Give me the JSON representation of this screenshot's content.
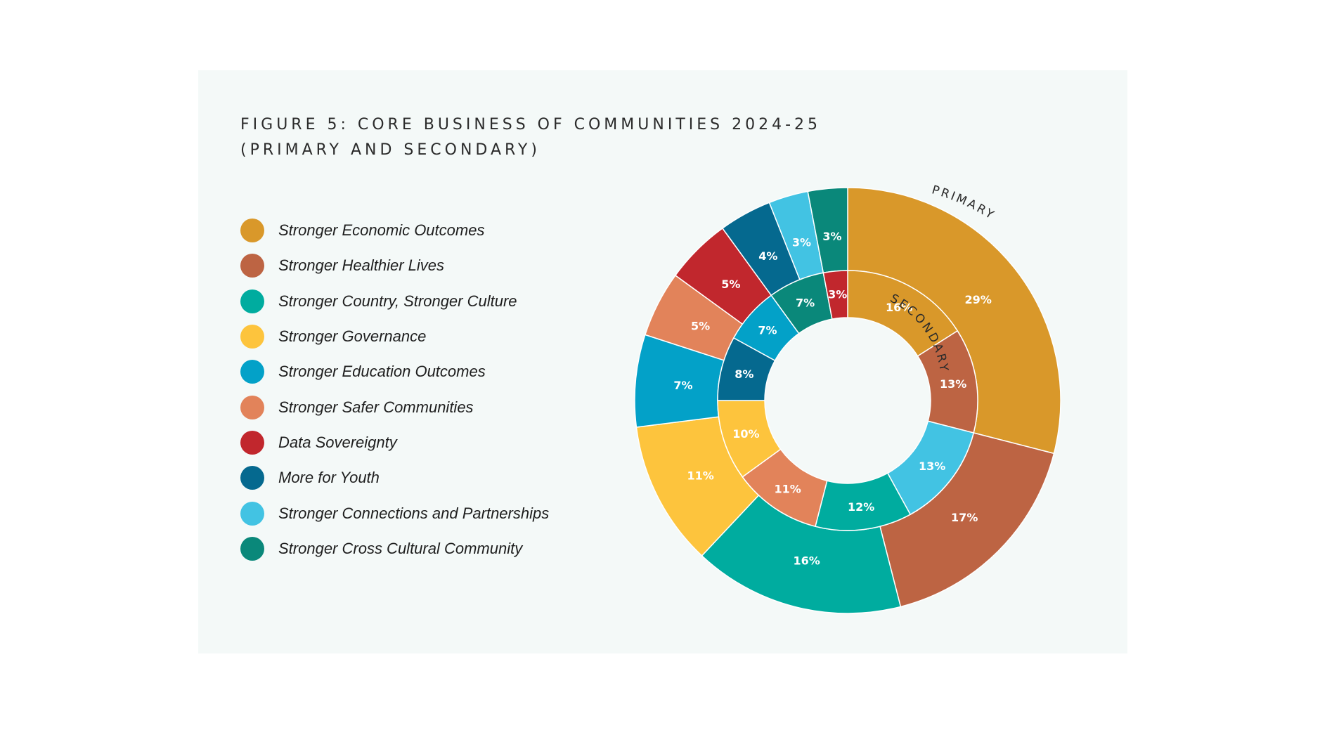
{
  "chart_data": {
    "type": "pie",
    "title_line1": "FIGURE 5: CORE BUSINESS OF COMMUNITIES 2024-25",
    "title_line2": "(PRIMARY AND SECONDARY)",
    "categories": [
      "Stronger Economic Outcomes",
      "Stronger Healthier Lives",
      "Stronger Country, Stronger Culture",
      "Stronger Governance",
      "Stronger Education Outcomes",
      "Stronger Safer Communities",
      "Data Sovereignty",
      "More for Youth",
      "Stronger Connections and Partnerships",
      "Stronger Cross Cultural Community"
    ],
    "colors": [
      "#d9982a",
      "#bd6443",
      "#00ac9f",
      "#fdc43d",
      "#03a1c8",
      "#e2835a",
      "#c1272d",
      "#05698f",
      "#42c3e3",
      "#0a887a"
    ],
    "series": [
      {
        "name": "PRIMARY",
        "ring": "outer",
        "order": [
          0,
          1,
          2,
          3,
          4,
          5,
          6,
          7,
          8,
          9
        ],
        "values": [
          29,
          17,
          16,
          11,
          7,
          5,
          5,
          4,
          3,
          3
        ],
        "labels": [
          "29%",
          "17%",
          "16%",
          "11%",
          "7%",
          "5%",
          "5%",
          "4%",
          "3%",
          "3%"
        ]
      },
      {
        "name": "SECONDARY",
        "ring": "inner",
        "order": [
          0,
          1,
          8,
          2,
          5,
          3,
          7,
          4,
          9,
          6
        ],
        "values": [
          16,
          13,
          13,
          12,
          11,
          10,
          8,
          7,
          7,
          3
        ],
        "labels": [
          "16%",
          "13%",
          "13%",
          "12%",
          "11%",
          "10%",
          "8%",
          "7%",
          "7%",
          "3%"
        ]
      }
    ]
  }
}
